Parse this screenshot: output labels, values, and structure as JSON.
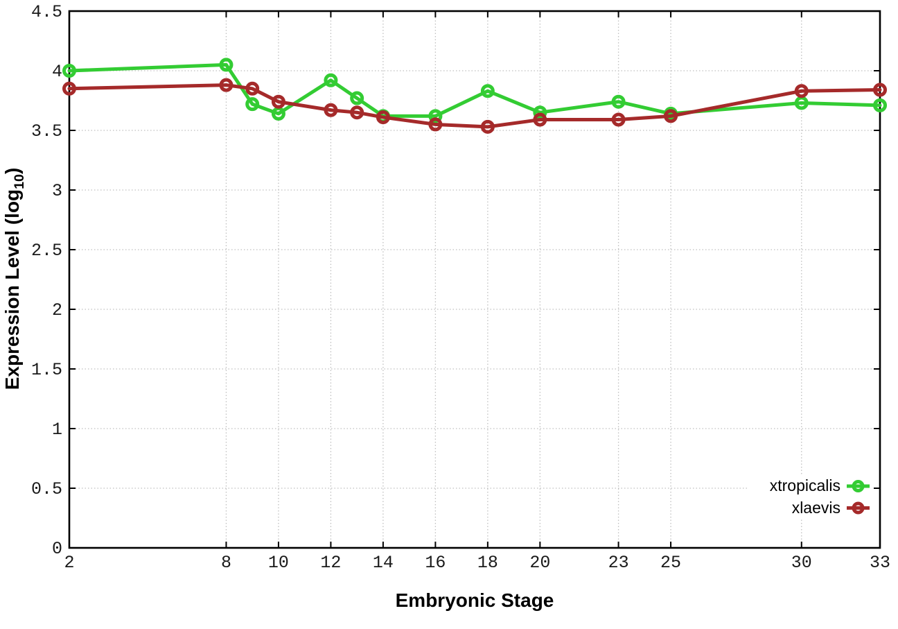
{
  "chart_data": {
    "type": "line",
    "title": "",
    "xlabel": "Embryonic Stage",
    "ylabel": "Expression Level (log10)",
    "ylabel_parts": {
      "main": "Expression Level (log",
      "sub": "10",
      "close": ")"
    },
    "xlim": [
      2,
      33
    ],
    "ylim": [
      0,
      4.5
    ],
    "x_ticks": [
      2,
      8,
      10,
      12,
      14,
      16,
      18,
      20,
      23,
      25,
      30,
      33
    ],
    "y_tick_step": 0.5,
    "grid": "dotted",
    "grid_color": "#bfbfbf",
    "axis_color": "#000000",
    "legend_position": "inside bottom-right",
    "x": [
      2,
      8,
      9,
      10,
      12,
      13,
      14,
      16,
      18,
      20,
      23,
      25,
      30,
      33
    ],
    "series": [
      {
        "name": "xtropicalis",
        "color": "#33cc33",
        "marker": "open-circle",
        "values": [
          4.0,
          4.05,
          3.72,
          3.64,
          3.92,
          3.77,
          3.62,
          3.62,
          3.83,
          3.65,
          3.74,
          3.64,
          3.73,
          3.71
        ]
      },
      {
        "name": "xlaevis",
        "color": "#a52a2a",
        "marker": "open-circle",
        "values": [
          3.85,
          3.88,
          3.85,
          3.74,
          3.67,
          3.65,
          3.61,
          3.55,
          3.53,
          3.59,
          3.59,
          3.62,
          3.83,
          3.84
        ]
      }
    ]
  }
}
